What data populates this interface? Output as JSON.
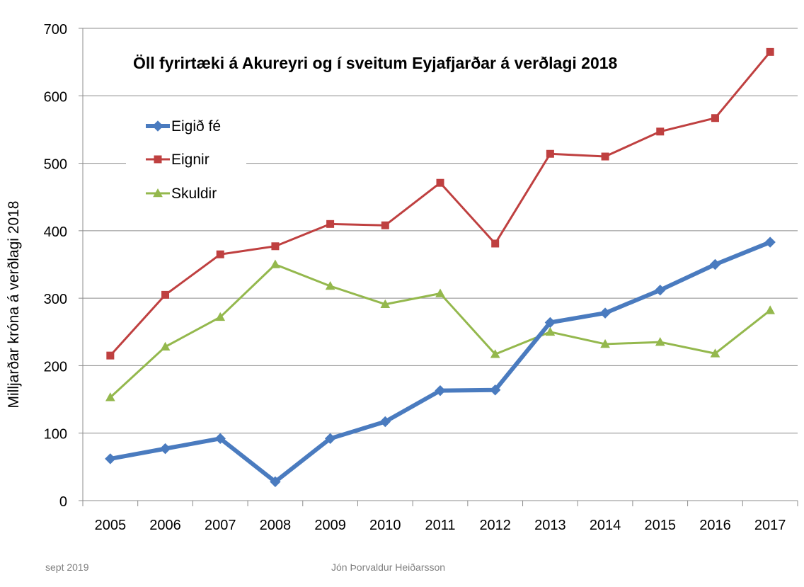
{
  "chart_data": {
    "type": "line",
    "title": "Öll fyrirtæki á Akureyri og í sveitum Eyjafjarðar á verðlagi 2018",
    "xlabel": "",
    "ylabel": "Milljarðar króna á verðlagi 2018",
    "categories": [
      "2005",
      "2006",
      "2007",
      "2008",
      "2009",
      "2010",
      "2011",
      "2012",
      "2013",
      "2014",
      "2015",
      "2016",
      "2017"
    ],
    "ylim": [
      0,
      700
    ],
    "yticks": [
      0,
      100,
      200,
      300,
      400,
      500,
      600,
      700
    ],
    "grid": true,
    "legend_position": "top-left",
    "series": [
      {
        "name": "Eigið fé",
        "color": "#4a7bbf",
        "marker": "diamond",
        "values": [
          62,
          77,
          92,
          28,
          92,
          117,
          163,
          164,
          264,
          278,
          312,
          350,
          383
        ]
      },
      {
        "name": "Eignir",
        "color": "#bf4040",
        "marker": "square",
        "values": [
          215,
          305,
          365,
          377,
          410,
          408,
          471,
          381,
          514,
          510,
          547,
          567,
          665
        ]
      },
      {
        "name": "Skuldir",
        "color": "#94b84d",
        "marker": "triangle",
        "values": [
          153,
          228,
          272,
          350,
          318,
          291,
          307,
          217,
          250,
          232,
          235,
          218,
          282
        ]
      }
    ]
  },
  "footer": {
    "date": "sept 2019",
    "author": "Jón Þorvaldur Heiðarsson"
  }
}
